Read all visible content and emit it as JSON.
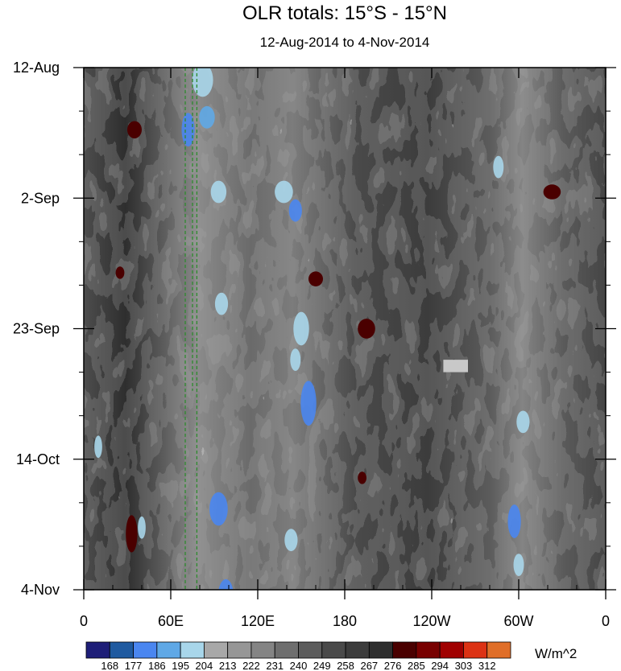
{
  "chart_data": {
    "type": "heatmap",
    "title": "OLR totals: 15°S - 15°N",
    "subtitle": "12-Aug-2014 to 4-Nov-2014",
    "xlabel": "",
    "ylabel": "",
    "x_range_degrees_east": [
      0,
      360
    ],
    "y_range_days_since_start": [
      0,
      84
    ],
    "y_axis_direction": "time increases downward",
    "x_ticks": [
      {
        "label": "0",
        "lon": 0
      },
      {
        "label": "60E",
        "lon": 60
      },
      {
        "label": "120E",
        "lon": 120
      },
      {
        "label": "180",
        "lon": 180
      },
      {
        "label": "120W",
        "lon": 240
      },
      {
        "label": "60W",
        "lon": 300
      },
      {
        "label": "0",
        "lon": 360
      }
    ],
    "y_ticks": [
      {
        "label": "12-Aug",
        "day": 0
      },
      {
        "label": "2-Sep",
        "day": 21
      },
      {
        "label": "23-Sep",
        "day": 42
      },
      {
        "label": "14-Oct",
        "day": 63
      },
      {
        "label": "4-Nov",
        "day": 84
      }
    ],
    "colorbar": {
      "units": "W/m^2",
      "levels": [
        168,
        177,
        186,
        195,
        204,
        213,
        222,
        231,
        240,
        249,
        258,
        267,
        276,
        285,
        294,
        303,
        312
      ],
      "colors": [
        "#1e1e78",
        "#1f5aa0",
        "#4a86f0",
        "#5fa8e6",
        "#a8d6ea",
        "#a8a8a8",
        "#969696",
        "#848484",
        "#6e6e6e",
        "#5c5c5c",
        "#4a4a4a",
        "#3c3c3c",
        "#2e2e2e",
        "#4a0000",
        "#780000",
        "#a00000",
        "#dc3214",
        "#e06e28"
      ]
    },
    "reference_lines": [
      {
        "lon": 70,
        "day_start": 0,
        "day_end": 84,
        "style": "dashed",
        "color": "#2e8b2e"
      },
      {
        "lon": 75,
        "day_start": 0,
        "day_end": 52,
        "style": "dashed",
        "color": "#2e8b2e"
      },
      {
        "lon": 78,
        "day_start": 0,
        "day_end": 84,
        "style": "dashed",
        "color": "#2e8b2e"
      }
    ],
    "convective_features": [
      {
        "region": "60E-90E",
        "day_start": 0,
        "day_end": 84,
        "min_olr": 186
      },
      {
        "region": "120E-160E",
        "day_start": 18,
        "day_end": 84,
        "min_olr": 186
      },
      {
        "region": "60W-75W",
        "day_start": 10,
        "day_end": 84,
        "min_olr": 186
      }
    ]
  }
}
